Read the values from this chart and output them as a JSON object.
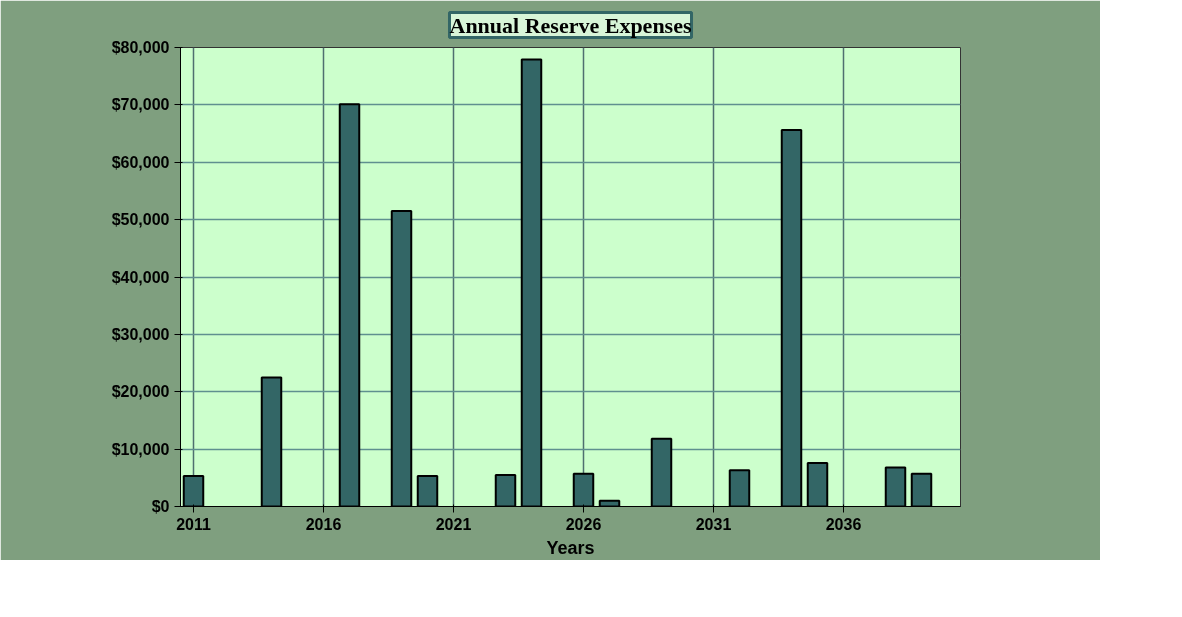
{
  "chart_data": {
    "type": "bar",
    "title": "Annual Reserve Expenses",
    "xlabel": "Years",
    "categories": [
      "2011",
      null,
      null,
      null,
      null,
      "2016",
      null,
      null,
      null,
      null,
      "2021",
      null,
      null,
      null,
      null,
      "2026",
      null,
      null,
      null,
      null,
      "2031",
      null,
      null,
      null,
      null,
      "2036",
      null,
      null,
      null,
      null
    ],
    "values": [
      5300,
      0,
      0,
      22500,
      0,
      0,
      70100,
      0,
      51500,
      5300,
      0,
      0,
      5500,
      77900,
      0,
      5700,
      1000,
      0,
      11800,
      0,
      0,
      6300,
      0,
      65600,
      7600,
      0,
      0,
      6800,
      5700,
      0
    ],
    "color": "#336666",
    "ylim": [
      0,
      80000
    ],
    "yticks": [
      {
        "value": 0,
        "label": "$0"
      },
      {
        "value": 10000,
        "label": "$10,000"
      },
      {
        "value": 20000,
        "label": "$20,000"
      },
      {
        "value": 30000,
        "label": "$30,000"
      },
      {
        "value": 40000,
        "label": "$40,000"
      },
      {
        "value": 50000,
        "label": "$50,000"
      },
      {
        "value": 60000,
        "label": "$60,000"
      },
      {
        "value": 70000,
        "label": "$70,000"
      },
      {
        "value": 80000,
        "label": "$80,000"
      }
    ],
    "grid": true
  }
}
